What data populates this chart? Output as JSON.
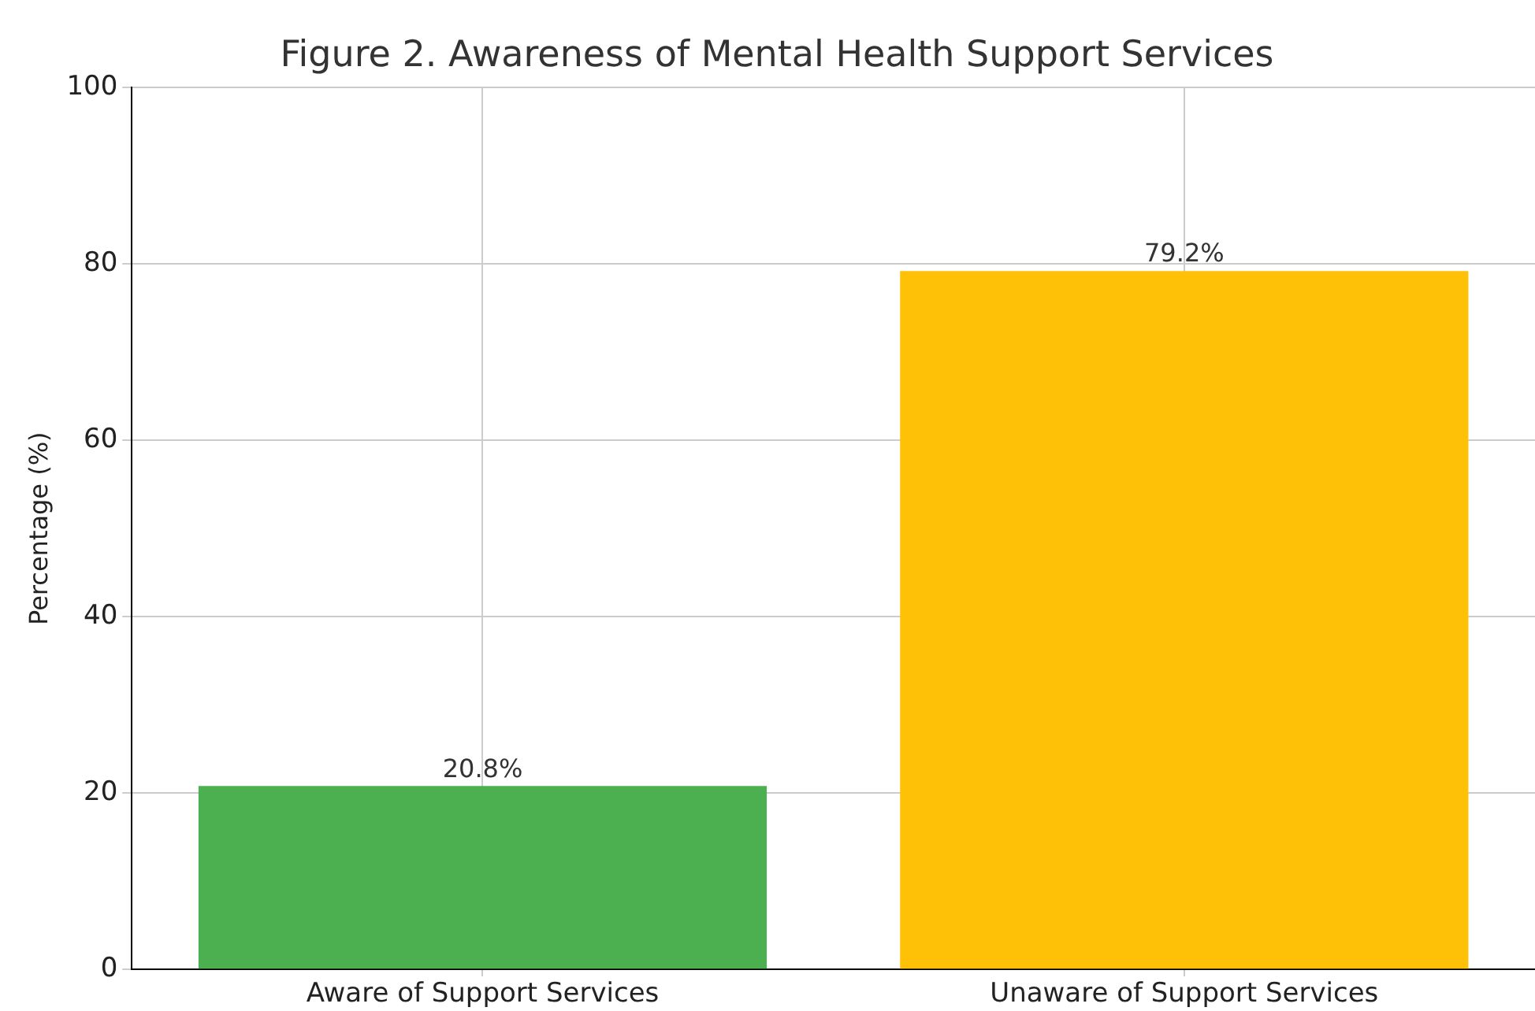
{
  "chart_data": {
    "type": "bar",
    "title": "Figure 2. Awareness of Mental Health Support Services",
    "ylabel": "Percentage (%)",
    "categories": [
      "Aware of Support Services",
      "Unaware of Support Services"
    ],
    "values": [
      20.8,
      79.2
    ],
    "value_labels": [
      "20.8%",
      "79.2%"
    ],
    "colors": [
      "#4caf50",
      "#ffc107"
    ],
    "ylim": [
      0,
      100
    ],
    "yticks": [
      0,
      20,
      40,
      60,
      80,
      100
    ],
    "grid": true,
    "legend": false
  }
}
